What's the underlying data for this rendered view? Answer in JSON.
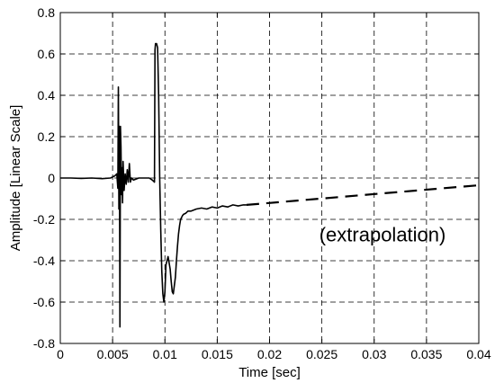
{
  "chart_data": {
    "type": "line",
    "title": "",
    "xlabel": "Time [sec]",
    "ylabel": "Amplitude [Linear Scale]",
    "xlim": [
      0,
      0.04
    ],
    "ylim": [
      -0.8,
      0.8
    ],
    "grid": true,
    "grid_style": "dashed",
    "xticks": [
      0,
      0.005,
      0.01,
      0.015,
      0.02,
      0.025,
      0.03,
      0.035,
      0.04
    ],
    "xtick_labels": [
      "0",
      "0.005",
      "0.01",
      "0.015",
      "0.02",
      "0.025",
      "0.03",
      "0.035",
      "0.04"
    ],
    "yticks": [
      -0.8,
      -0.6,
      -0.4,
      -0.2,
      0,
      0.2,
      0.4,
      0.6,
      0.8
    ],
    "ytick_labels": [
      "-0.8",
      "-0.6",
      "-0.4",
      "-0.2",
      "0",
      "0.2",
      "0.4",
      "0.6",
      "0.8"
    ],
    "annotation": {
      "text": "(extrapolation)",
      "x": 0.0308,
      "y": -0.21
    },
    "line_color": "#000000",
    "series": [
      {
        "style": "solid",
        "x": [
          0,
          0.001,
          0.002,
          0.003,
          0.004,
          0.0048,
          0.0052,
          0.0054,
          0.0055,
          0.00555,
          0.0056,
          0.00565,
          0.0057,
          0.00575,
          0.0058,
          0.00585,
          0.0059,
          0.00595,
          0.006,
          0.0061,
          0.0062,
          0.0063,
          0.0064,
          0.0065,
          0.0066,
          0.0067,
          0.0068,
          0.007,
          0.0075,
          0.008,
          0.0085,
          0.0088,
          0.009,
          0.00905,
          0.0091,
          0.0092,
          0.0093,
          0.0094,
          0.0095,
          0.0096,
          0.0097,
          0.0098,
          0.0099,
          0.01,
          0.0101,
          0.0102,
          0.0103,
          0.0104,
          0.0105,
          0.0106,
          0.0107,
          0.0108,
          0.0109,
          0.011,
          0.0111,
          0.0112,
          0.0113,
          0.0114,
          0.0115,
          0.0116,
          0.0117,
          0.0118,
          0.012,
          0.0122,
          0.0125,
          0.013,
          0.0135,
          0.014,
          0.0145,
          0.015,
          0.0155,
          0.016,
          0.0165,
          0.017,
          0.0175,
          0.0178
        ],
        "y": [
          0,
          0,
          -0.002,
          0,
          -0.003,
          0,
          0.01,
          0.02,
          -0.05,
          0.44,
          -0.15,
          0.25,
          -0.72,
          0.25,
          0.15,
          -0.08,
          0.05,
          -0.12,
          0.08,
          -0.06,
          0.02,
          -0.03,
          0.04,
          -0.02,
          0.07,
          -0.02,
          0.0,
          -0.01,
          0.0,
          0.0,
          0.0,
          -0.01,
          -0.02,
          0.62,
          0.65,
          0.65,
          0.63,
          0.4,
          0.0,
          -0.25,
          -0.45,
          -0.56,
          -0.6,
          -0.55,
          -0.42,
          -0.4,
          -0.38,
          -0.41,
          -0.44,
          -0.5,
          -0.55,
          -0.56,
          -0.52,
          -0.48,
          -0.4,
          -0.33,
          -0.27,
          -0.23,
          -0.2,
          -0.19,
          -0.18,
          -0.175,
          -0.17,
          -0.16,
          -0.16,
          -0.15,
          -0.145,
          -0.15,
          -0.14,
          -0.145,
          -0.135,
          -0.14,
          -0.13,
          -0.135,
          -0.13,
          -0.13
        ]
      },
      {
        "style": "dashed",
        "name": "(extrapolation)",
        "x": [
          0.0178,
          0.04
        ],
        "y": [
          -0.13,
          -0.035
        ]
      }
    ]
  }
}
